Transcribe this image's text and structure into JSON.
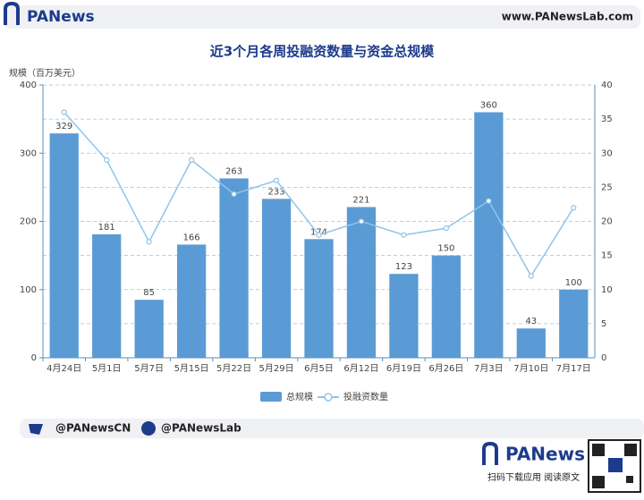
{
  "header": {
    "logo": "PANews",
    "site": "www.PANewsLab.com"
  },
  "chart_data": {
    "type": "bar",
    "title": "近3个月各周投融资数量与资金总规模",
    "y_label": "规模（百万美元）",
    "categories": [
      "4月24日",
      "5月1日",
      "5月7日",
      "5月15日",
      "5月22日",
      "5月29日",
      "6月5日",
      "6月12日",
      "6月19日",
      "6月26日",
      "7月3日",
      "7月10日",
      "7月17日"
    ],
    "series": [
      {
        "name": "总规模",
        "type": "bar",
        "color": "#5b9bd5",
        "values": [
          329,
          181,
          85,
          166,
          263,
          233,
          174,
          221,
          123,
          150,
          360,
          43,
          100
        ]
      },
      {
        "name": "投融资数量",
        "type": "line",
        "axis": "y2",
        "color": "#8ec5ea",
        "values": [
          36,
          29,
          17,
          29,
          24,
          26,
          18,
          20,
          18,
          19,
          23,
          12,
          22
        ]
      }
    ],
    "ylim": [
      0,
      400
    ],
    "yticks": [
      0,
      100,
      200,
      300,
      400
    ],
    "y2lim": [
      0,
      40
    ],
    "y2ticks": [
      0,
      5,
      10,
      15,
      20,
      25,
      30,
      35,
      40
    ],
    "grid": true
  },
  "footer": {
    "twitter": "@PANewsCN",
    "facebook": "@PANewsLab",
    "brand": "PANews",
    "cta": "扫码下载应用  阅读原文"
  }
}
